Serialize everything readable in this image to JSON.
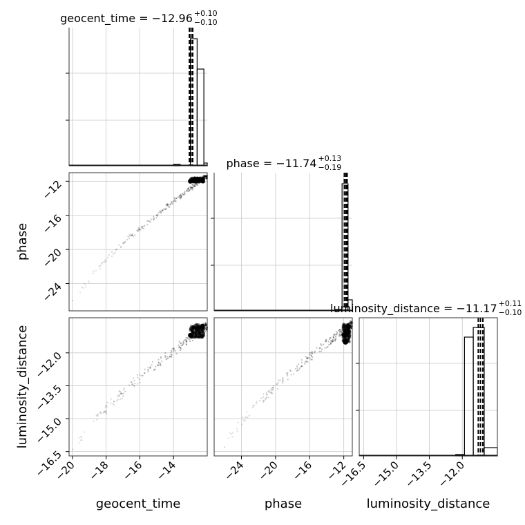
{
  "chart_data": {
    "type": "corner",
    "grid": true,
    "parameters": [
      "geocent_time",
      "phase",
      "luminosity_distance"
    ],
    "axis_labels": {
      "geocent_time": "geocent_time",
      "phase": "phase",
      "luminosity_distance": "luminosity_distance"
    },
    "titles": [
      {
        "param": "geocent_time",
        "text": "geocent_time = −12.96",
        "plus": "+0.10",
        "minus": "−0.10"
      },
      {
        "param": "phase",
        "text": "phase = −11.74",
        "plus": "+0.13",
        "minus": "−0.19"
      },
      {
        "param": "luminosity_distance",
        "text": "luminosity_distance = −11.17",
        "plus": "+0.11",
        "minus": "−0.10"
      }
    ],
    "ranges": {
      "geocent_time": [
        -20.2,
        -12.0
      ],
      "phase": [
        -27.2,
        -11.0
      ],
      "luminosity_distance": [
        -16.7,
        -10.4
      ]
    },
    "ticks": {
      "geocent_time": {
        "values": [
          -20,
          -18,
          -16,
          -14
        ],
        "labels": [
          "−20",
          "−18",
          "−16",
          "−14"
        ]
      },
      "phase_x": {
        "values": [
          -24,
          -20,
          -16,
          -12
        ],
        "labels": [
          "−24",
          "−20",
          "−16",
          "−12"
        ]
      },
      "phase_y": {
        "values": [
          -12,
          -16,
          -20,
          -24
        ],
        "labels": [
          "−12",
          "−16",
          "−20",
          "−24"
        ]
      },
      "luminosity_distance_x": {
        "values": [
          -16.5,
          -15.0,
          -13.5,
          -12.0
        ],
        "labels": [
          "−16.5",
          "−15.0",
          "−13.5",
          "−12.0"
        ]
      },
      "luminosity_distance_y": {
        "values": [
          -12.0,
          -13.5,
          -15.0,
          -16.5
        ],
        "labels": [
          "−12.0",
          "−13.5",
          "−15.0",
          "−16.5"
        ]
      }
    },
    "quantile_lines": {
      "geocent_time": [
        -13.06,
        -12.96,
        -12.86
      ],
      "phase": [
        -11.93,
        -11.74,
        -11.61
      ],
      "luminosity_distance": [
        -11.27,
        -11.17,
        -11.06
      ]
    },
    "histograms": {
      "geocent_time": [
        {
          "x0": -14.0,
          "x1": -13.6,
          "h": 0.01
        },
        {
          "x0": -13.0,
          "x1": -12.6,
          "h": 0.92
        },
        {
          "x0": -12.6,
          "x1": -12.2,
          "h": 0.7
        },
        {
          "x0": -12.2,
          "x1": -12.0,
          "h": 0.02
        }
      ],
      "phase": [
        {
          "x0": -13.0,
          "x1": -12.2,
          "h": 0.01
        },
        {
          "x0": -12.2,
          "x1": -11.5,
          "h": 0.92
        },
        {
          "x0": -11.5,
          "x1": -11.0,
          "h": 0.08
        }
      ],
      "luminosity_distance": [
        {
          "x0": -12.3,
          "x1": -11.9,
          "h": 0.01
        },
        {
          "x0": -11.9,
          "x1": -11.5,
          "h": 0.86
        },
        {
          "x0": -11.5,
          "x1": -11.0,
          "h": 0.93
        },
        {
          "x0": -11.0,
          "x1": -10.4,
          "h": 0.06
        }
      ]
    }
  }
}
